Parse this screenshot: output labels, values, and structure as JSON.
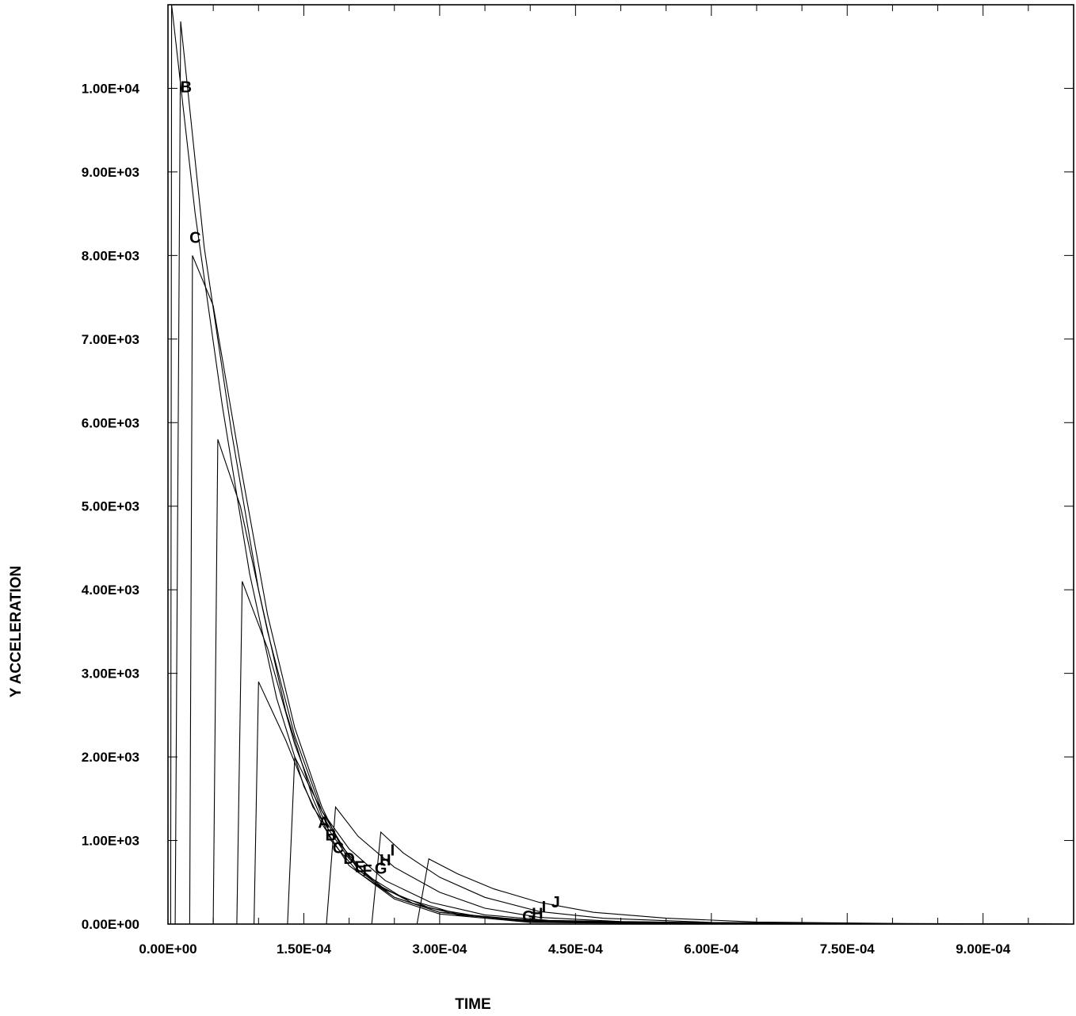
{
  "chart_data": {
    "type": "line",
    "title": "",
    "xlabel": "TIME",
    "ylabel": "Y ACCELERATION",
    "xlim": [
      0,
      0.001
    ],
    "ylim": [
      0,
      11000
    ],
    "x_tick_labels": [
      "0.00E+00",
      "1.50E-04",
      "3.00E-04",
      "4.50E-04",
      "6.00E-04",
      "7.50E-04",
      "9.00E-04"
    ],
    "x_tick_values": [
      0,
      0.00015,
      0.0003,
      0.00045,
      0.0006,
      0.00075,
      0.0009
    ],
    "y_tick_labels": [
      "0.00E+00",
      "1.00E+03",
      "2.00E+03",
      "3.00E+03",
      "4.00E+03",
      "5.00E+03",
      "6.00E+03",
      "7.00E+03",
      "8.00E+03",
      "9.00E+03",
      "1.00E+04"
    ],
    "y_tick_values": [
      0,
      1000,
      2000,
      3000,
      4000,
      5000,
      6000,
      7000,
      8000,
      9000,
      10000
    ],
    "grid": false,
    "legend": "none",
    "series": [
      {
        "label": "A",
        "points": [
          [
            3e-06,
            0
          ],
          [
            4e-06,
            11000
          ],
          [
            3e-05,
            8500
          ],
          [
            6e-05,
            6200
          ],
          [
            9e-05,
            4200
          ],
          [
            0.00012,
            2700
          ],
          [
            0.00015,
            1650
          ],
          [
            0.00017,
            1200
          ],
          [
            0.0002,
            700
          ],
          [
            0.00025,
            300
          ],
          [
            0.0003,
            120
          ],
          [
            0.0004,
            20
          ],
          [
            0.0006,
            0
          ],
          [
            0.001,
            0
          ]
        ]
      },
      {
        "label": "B",
        "points": [
          [
            8e-06,
            0
          ],
          [
            1.4e-05,
            10800
          ],
          [
            4e-05,
            8100
          ],
          [
            7e-05,
            5900
          ],
          [
            0.0001,
            4000
          ],
          [
            0.00013,
            2550
          ],
          [
            0.00016,
            1500
          ],
          [
            0.00018,
            1000
          ],
          [
            0.00021,
            620
          ],
          [
            0.00025,
            320
          ],
          [
            0.0003,
            140
          ],
          [
            0.0004,
            25
          ],
          [
            0.0006,
            0
          ],
          [
            0.001,
            0
          ]
        ]
      },
      {
        "label": "C",
        "points": [
          [
            2.4e-05,
            0
          ],
          [
            2.7e-05,
            8000
          ],
          [
            5e-05,
            7400
          ],
          [
            8e-05,
            5500
          ],
          [
            0.00011,
            3700
          ],
          [
            0.00014,
            2350
          ],
          [
            0.00017,
            1400
          ],
          [
            0.00019,
            950
          ],
          [
            0.00022,
            580
          ],
          [
            0.00026,
            310
          ],
          [
            0.00032,
            120
          ],
          [
            0.0004,
            35
          ],
          [
            0.0006,
            0
          ],
          [
            0.001,
            0
          ]
        ]
      },
      {
        "label": "D",
        "points": [
          [
            5e-05,
            0
          ],
          [
            5.5e-05,
            5800
          ],
          [
            8e-05,
            5000
          ],
          [
            0.00011,
            3500
          ],
          [
            0.00014,
            2250
          ],
          [
            0.00017,
            1350
          ],
          [
            0.0002,
            800
          ],
          [
            0.00023,
            480
          ],
          [
            0.00027,
            250
          ],
          [
            0.00032,
            110
          ],
          [
            0.0004,
            40
          ],
          [
            0.0006,
            0
          ],
          [
            0.001,
            0
          ]
        ]
      },
      {
        "label": "E",
        "points": [
          [
            7.6e-05,
            0
          ],
          [
            8.2e-05,
            4100
          ],
          [
            0.00011,
            3300
          ],
          [
            0.00014,
            2150
          ],
          [
            0.00017,
            1300
          ],
          [
            0.00021,
            650
          ],
          [
            0.00025,
            320
          ],
          [
            0.0003,
            140
          ],
          [
            0.0004,
            45
          ],
          [
            0.0006,
            5
          ],
          [
            0.001,
            0
          ]
        ]
      },
      {
        "label": "F",
        "points": [
          [
            9.5e-05,
            0
          ],
          [
            0.0001,
            2900
          ],
          [
            0.00013,
            2200
          ],
          [
            0.00016,
            1400
          ],
          [
            0.0002,
            780
          ],
          [
            0.00024,
            410
          ],
          [
            0.00029,
            190
          ],
          [
            0.00035,
            80
          ],
          [
            0.00042,
            40
          ],
          [
            0.0006,
            8
          ],
          [
            0.001,
            0
          ]
        ]
      },
      {
        "label": "G",
        "points": [
          [
            0.000132,
            0
          ],
          [
            0.00014,
            2000
          ],
          [
            0.00017,
            1350
          ],
          [
            0.0002,
            900
          ],
          [
            0.00024,
            520
          ],
          [
            0.00029,
            260
          ],
          [
            0.00035,
            110
          ],
          [
            0.00042,
            45
          ],
          [
            0.0006,
            10
          ],
          [
            0.001,
            0
          ]
        ]
      },
      {
        "label": "H",
        "points": [
          [
            0.000175,
            0
          ],
          [
            0.000185,
            1400
          ],
          [
            0.00021,
            1050
          ],
          [
            0.00025,
            680
          ],
          [
            0.0003,
            380
          ],
          [
            0.00035,
            190
          ],
          [
            0.00041,
            80
          ],
          [
            0.0005,
            30
          ],
          [
            0.0007,
            5
          ],
          [
            0.001,
            0
          ]
        ]
      },
      {
        "label": "I",
        "points": [
          [
            0.000225,
            0
          ],
          [
            0.000235,
            1100
          ],
          [
            0.00026,
            850
          ],
          [
            0.0003,
            560
          ],
          [
            0.00035,
            320
          ],
          [
            0.00041,
            150
          ],
          [
            0.00048,
            70
          ],
          [
            0.0006,
            20
          ],
          [
            0.0008,
            3
          ],
          [
            0.001,
            0
          ]
        ]
      },
      {
        "label": "J",
        "points": [
          [
            0.000275,
            0
          ],
          [
            0.000288,
            780
          ],
          [
            0.00032,
            600
          ],
          [
            0.00036,
            420
          ],
          [
            0.00041,
            260
          ],
          [
            0.00047,
            140
          ],
          [
            0.00055,
            70
          ],
          [
            0.00065,
            25
          ],
          [
            0.0008,
            8
          ],
          [
            0.001,
            0
          ]
        ]
      }
    ],
    "curve_letter_marks": [
      {
        "text": "B",
        "x": 2e-05,
        "y": 9950
      },
      {
        "text": "C",
        "x": 3e-05,
        "y": 8150
      },
      {
        "text": "A",
        "x": 0.000172,
        "y": 1150
      },
      {
        "text": "B",
        "x": 0.00018,
        "y": 1000
      },
      {
        "text": "C",
        "x": 0.000188,
        "y": 850
      },
      {
        "text": "D",
        "x": 0.0002,
        "y": 720
      },
      {
        "text": "E",
        "x": 0.000212,
        "y": 620
      },
      {
        "text": "F",
        "x": 0.00022,
        "y": 580
      },
      {
        "text": "G",
        "x": 0.000235,
        "y": 600
      },
      {
        "text": "H",
        "x": 0.00024,
        "y": 700
      },
      {
        "text": "I",
        "x": 0.000248,
        "y": 820
      },
      {
        "text": "G",
        "x": 0.000398,
        "y": 30
      },
      {
        "text": "H",
        "x": 0.000408,
        "y": 60
      },
      {
        "text": "I",
        "x": 0.000415,
        "y": 140
      },
      {
        "text": "J",
        "x": 0.000428,
        "y": 200
      }
    ]
  }
}
